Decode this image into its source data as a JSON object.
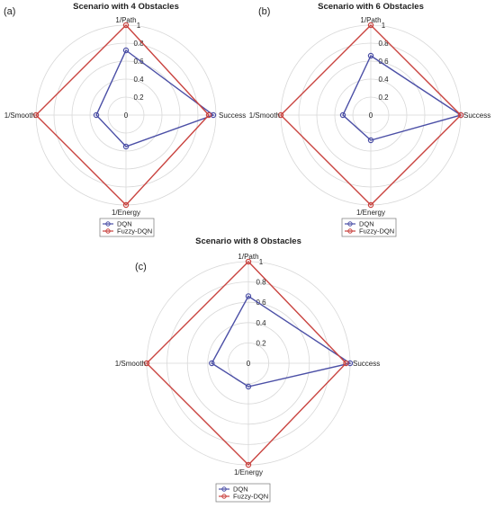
{
  "colors": {
    "dqn": "#4b4fa6",
    "fuzzy": "#c9433f",
    "grid": "#d8d8d8"
  },
  "chart_data": [
    {
      "type": "radar",
      "panel_label": "(a)",
      "title": "Scenario with 4 Obstacles",
      "axes": [
        "1/Path",
        "Success",
        "1/Energy",
        "1/Smooth"
      ],
      "ticks": [
        0,
        0.2,
        0.4,
        0.6,
        0.8,
        1
      ],
      "rlim": [
        0,
        1
      ],
      "series": [
        {
          "name": "DQN",
          "values": [
            0.72,
            0.97,
            0.35,
            0.33
          ]
        },
        {
          "name": "Fuzzy-DQN",
          "values": [
            1,
            0.92,
            1,
            1
          ]
        }
      ]
    },
    {
      "type": "radar",
      "panel_label": "(b)",
      "title": "Scenario with 6 Obstacles",
      "axes": [
        "1/Path",
        "Success",
        "1/Energy",
        "1/Smooth"
      ],
      "ticks": [
        0,
        0.2,
        0.4,
        0.6,
        0.8,
        1
      ],
      "rlim": [
        0,
        1
      ],
      "series": [
        {
          "name": "DQN",
          "values": [
            0.66,
            1,
            0.28,
            0.31
          ]
        },
        {
          "name": "Fuzzy-DQN",
          "values": [
            1,
            1,
            1,
            1
          ]
        }
      ]
    },
    {
      "type": "radar",
      "panel_label": "(c)",
      "title": "Scenario with 8 Obstacles",
      "axes": [
        "1/Path",
        "Success",
        "1/Energy",
        "1/Smooth"
      ],
      "ticks": [
        0,
        0.2,
        0.4,
        0.6,
        0.8,
        1
      ],
      "rlim": [
        0,
        1
      ],
      "series": [
        {
          "name": "DQN",
          "values": [
            0.66,
            1,
            0.23,
            0.36
          ]
        },
        {
          "name": "Fuzzy-DQN",
          "values": [
            1,
            0.96,
            1,
            1
          ]
        }
      ]
    }
  ]
}
